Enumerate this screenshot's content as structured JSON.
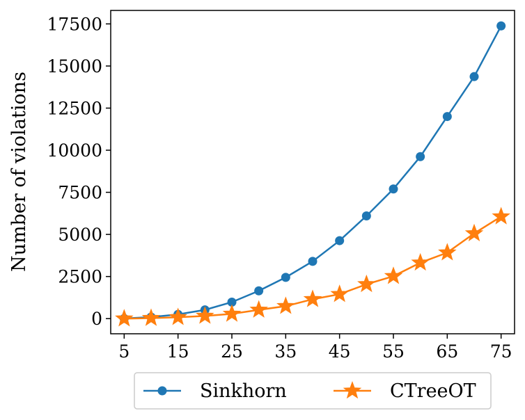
{
  "chart_data": {
    "type": "line",
    "xlabel": "",
    "ylabel": "Number of violations",
    "x": [
      5,
      10,
      15,
      20,
      25,
      30,
      35,
      40,
      45,
      50,
      55,
      60,
      65,
      70,
      75
    ],
    "xticks": [
      "5",
      "15",
      "25",
      "35",
      "45",
      "55",
      "65",
      "75"
    ],
    "yticks": [
      "0",
      "2500",
      "5000",
      "7500",
      "10000",
      "12500",
      "15000",
      "17500"
    ],
    "xlim": [
      2.5,
      77.5
    ],
    "ylim": [
      -900,
      18300
    ],
    "grid": false,
    "legend_position": "bottom-center",
    "series": [
      {
        "name": "Sinkhorn",
        "color": "#1f77b4",
        "marker": "circle",
        "values": [
          10,
          90,
          250,
          520,
          980,
          1650,
          2450,
          3400,
          4630,
          6100,
          7700,
          9620,
          12000,
          14370,
          17380
        ]
      },
      {
        "name": "CTreeOT",
        "color": "#ff7f0e",
        "marker": "star",
        "values": [
          0,
          30,
          80,
          160,
          280,
          520,
          740,
          1150,
          1450,
          2040,
          2520,
          3320,
          3920,
          5060,
          6060
        ]
      }
    ]
  }
}
